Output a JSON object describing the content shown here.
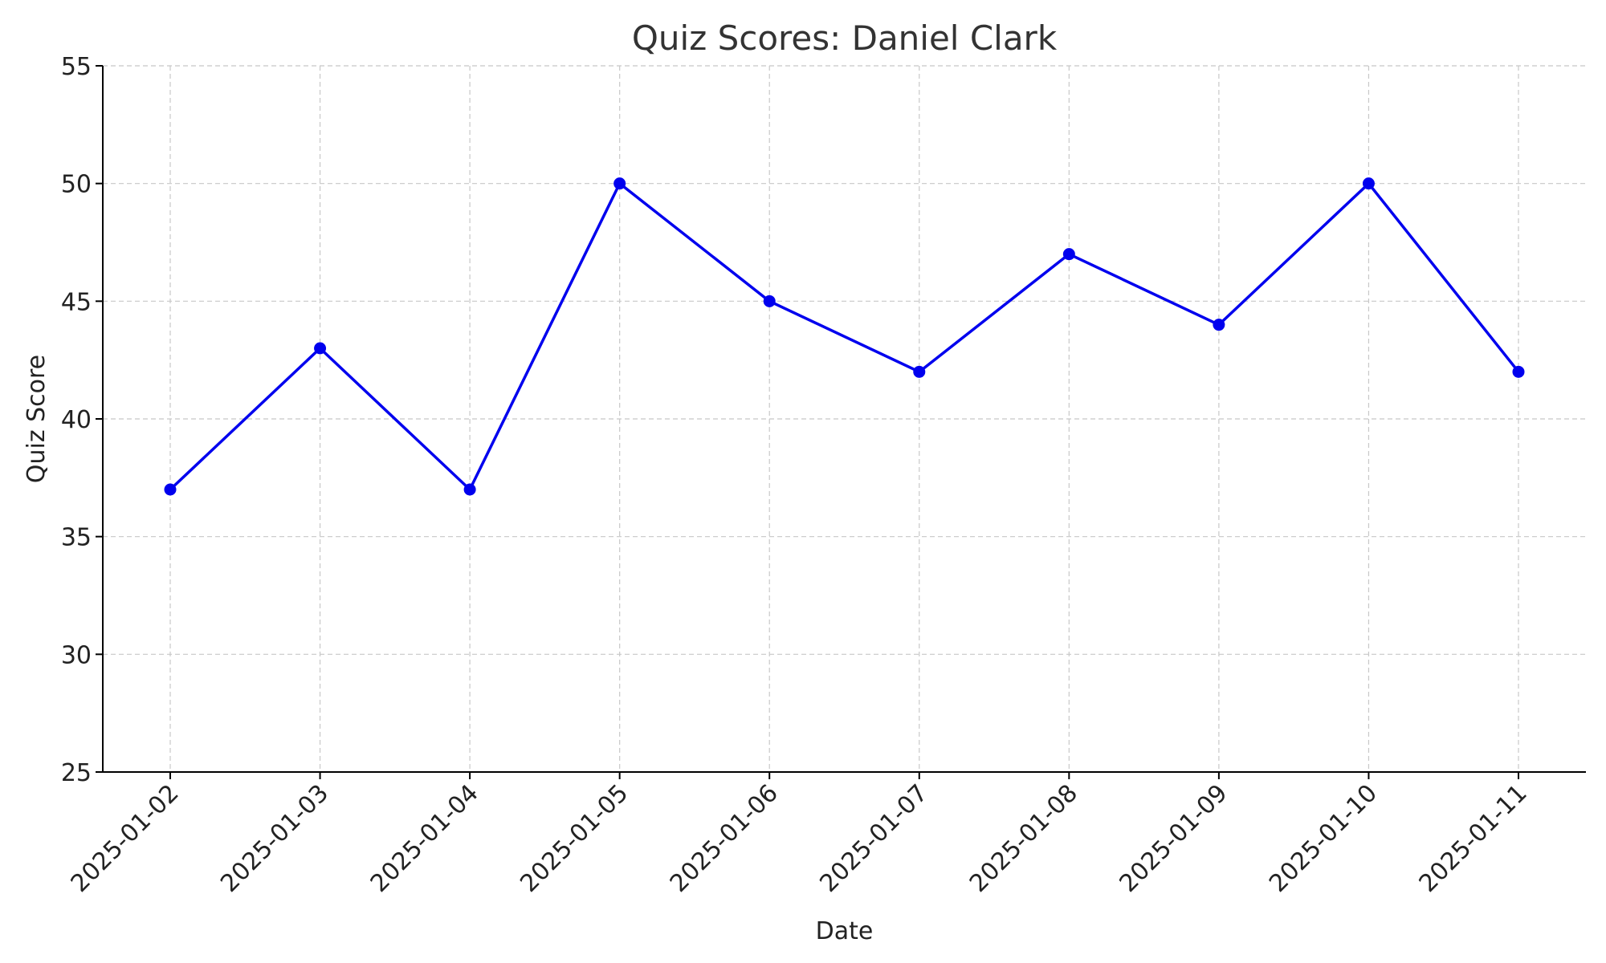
{
  "chart_data": {
    "type": "line",
    "title": "Quiz Scores: Daniel Clark",
    "xlabel": "Date",
    "ylabel": "Quiz Score",
    "x": [
      "2025-01-02",
      "2025-01-03",
      "2025-01-04",
      "2025-01-05",
      "2025-01-06",
      "2025-01-07",
      "2025-01-08",
      "2025-01-09",
      "2025-01-10",
      "2025-01-11"
    ],
    "series": [
      {
        "values": [
          37,
          43,
          37,
          50,
          45,
          42,
          47,
          44,
          50,
          42
        ],
        "color": "#0000ee",
        "marker": "circle"
      }
    ],
    "ylim": [
      25,
      55
    ],
    "yticks": [
      25,
      30,
      35,
      40,
      45,
      50,
      55
    ],
    "grid": true,
    "legend": "none"
  }
}
